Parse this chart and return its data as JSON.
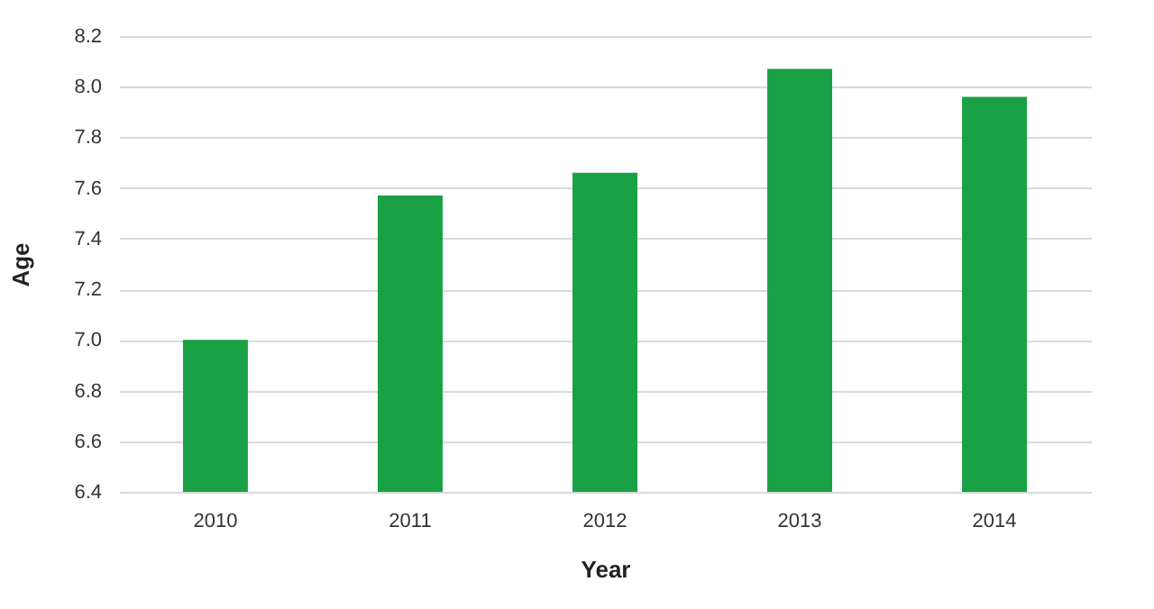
{
  "chart_data": {
    "type": "bar",
    "xlabel": "Year",
    "ylabel": "Age",
    "categories": [
      "2010",
      "2011",
      "2012",
      "2013",
      "2014"
    ],
    "values": [
      7.0,
      7.57,
      7.66,
      8.07,
      7.96
    ],
    "color": "#1aa145",
    "ylim": [
      6.4,
      8.2
    ],
    "yticks": [
      6.4,
      6.6,
      6.8,
      {
        "value": 7,
        "label": "7.0"
      },
      7.2,
      7.4,
      7.6,
      7.8,
      {
        "value": 8,
        "label": "8.0"
      },
      8.2
    ],
    "grid": "y"
  }
}
